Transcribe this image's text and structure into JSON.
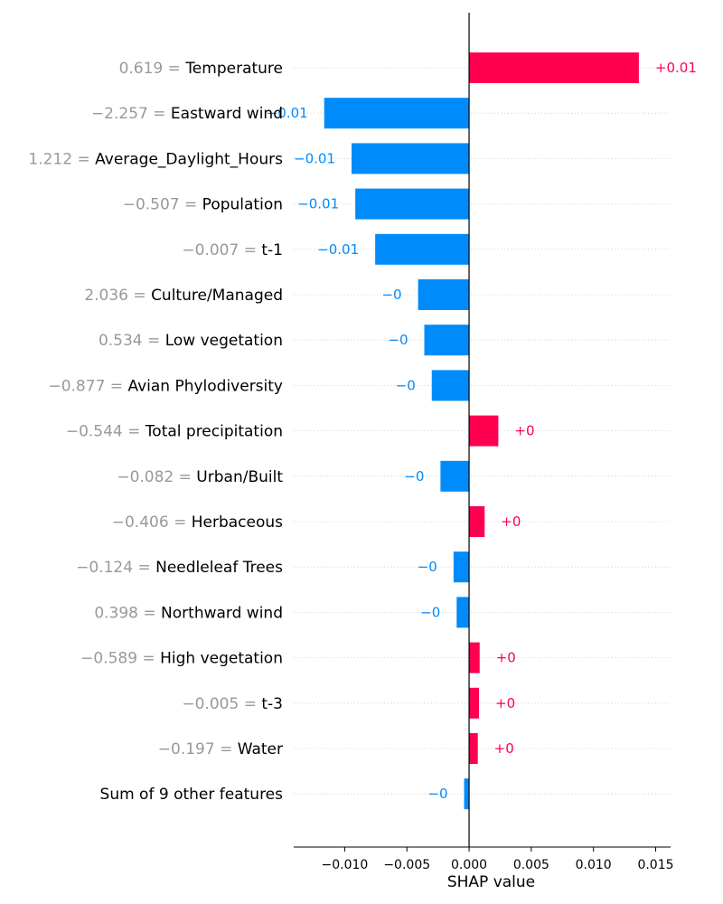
{
  "chart_data": {
    "type": "bar",
    "orientation": "horizontal",
    "xlabel": "SHAP value",
    "xlim": [
      -0.0141,
      0.0162
    ],
    "xticks": [
      -0.01,
      -0.005,
      0.0,
      0.005,
      0.01,
      0.015
    ],
    "xtick_labels": [
      "−0.010",
      "−0.005",
      "0.000",
      "0.005",
      "0.010",
      "0.015"
    ],
    "grid": "horizontal dotted",
    "colors": {
      "positive": "#ff0051",
      "negative": "#008bfb",
      "feature_value": "#999999"
    },
    "rows": [
      {
        "value_text": "0.619 =",
        "feature": "Temperature",
        "shap": 0.01365,
        "label": "+0.01"
      },
      {
        "value_text": "−2.257 =",
        "feature": "Eastward wind",
        "shap": -0.01165,
        "label": "−0.01"
      },
      {
        "value_text": "1.212 =",
        "feature": "Average_Daylight_Hours",
        "shap": -0.00945,
        "label": "−0.01"
      },
      {
        "value_text": "−0.507 =",
        "feature": "Population",
        "shap": -0.00915,
        "label": "−0.01"
      },
      {
        "value_text": "−0.007 =",
        "feature": "t-1",
        "shap": -0.00755,
        "label": "−0.01"
      },
      {
        "value_text": "2.036 =",
        "feature": "Culture/Managed",
        "shap": -0.0041,
        "label": "−0"
      },
      {
        "value_text": "0.534 =",
        "feature": "Low vegetation",
        "shap": -0.0036,
        "label": "−0"
      },
      {
        "value_text": "−0.877 =",
        "feature": "Avian Phylodiversity",
        "shap": -0.003,
        "label": "−0"
      },
      {
        "value_text": "−0.544 =",
        "feature": "Total precipitation",
        "shap": 0.00235,
        "label": "+0"
      },
      {
        "value_text": "−0.082 =",
        "feature": "Urban/Built",
        "shap": -0.0023,
        "label": "−0"
      },
      {
        "value_text": "−0.406 =",
        "feature": "Herbaceous",
        "shap": 0.00125,
        "label": "+0"
      },
      {
        "value_text": "−0.124 =",
        "feature": "Needleleaf Trees",
        "shap": -0.00125,
        "label": "−0"
      },
      {
        "value_text": "0.398 =",
        "feature": "Northward wind",
        "shap": -0.001,
        "label": "−0"
      },
      {
        "value_text": "−0.589 =",
        "feature": "High vegetation",
        "shap": 0.00085,
        "label": "+0"
      },
      {
        "value_text": "−0.005 =",
        "feature": "t-3",
        "shap": 0.0008,
        "label": "+0"
      },
      {
        "value_text": "−0.197 =",
        "feature": "Water",
        "shap": 0.0007,
        "label": "+0"
      },
      {
        "value_text": "",
        "feature": "Sum of 9 other features",
        "shap": -0.0004,
        "label": "−0"
      }
    ]
  }
}
